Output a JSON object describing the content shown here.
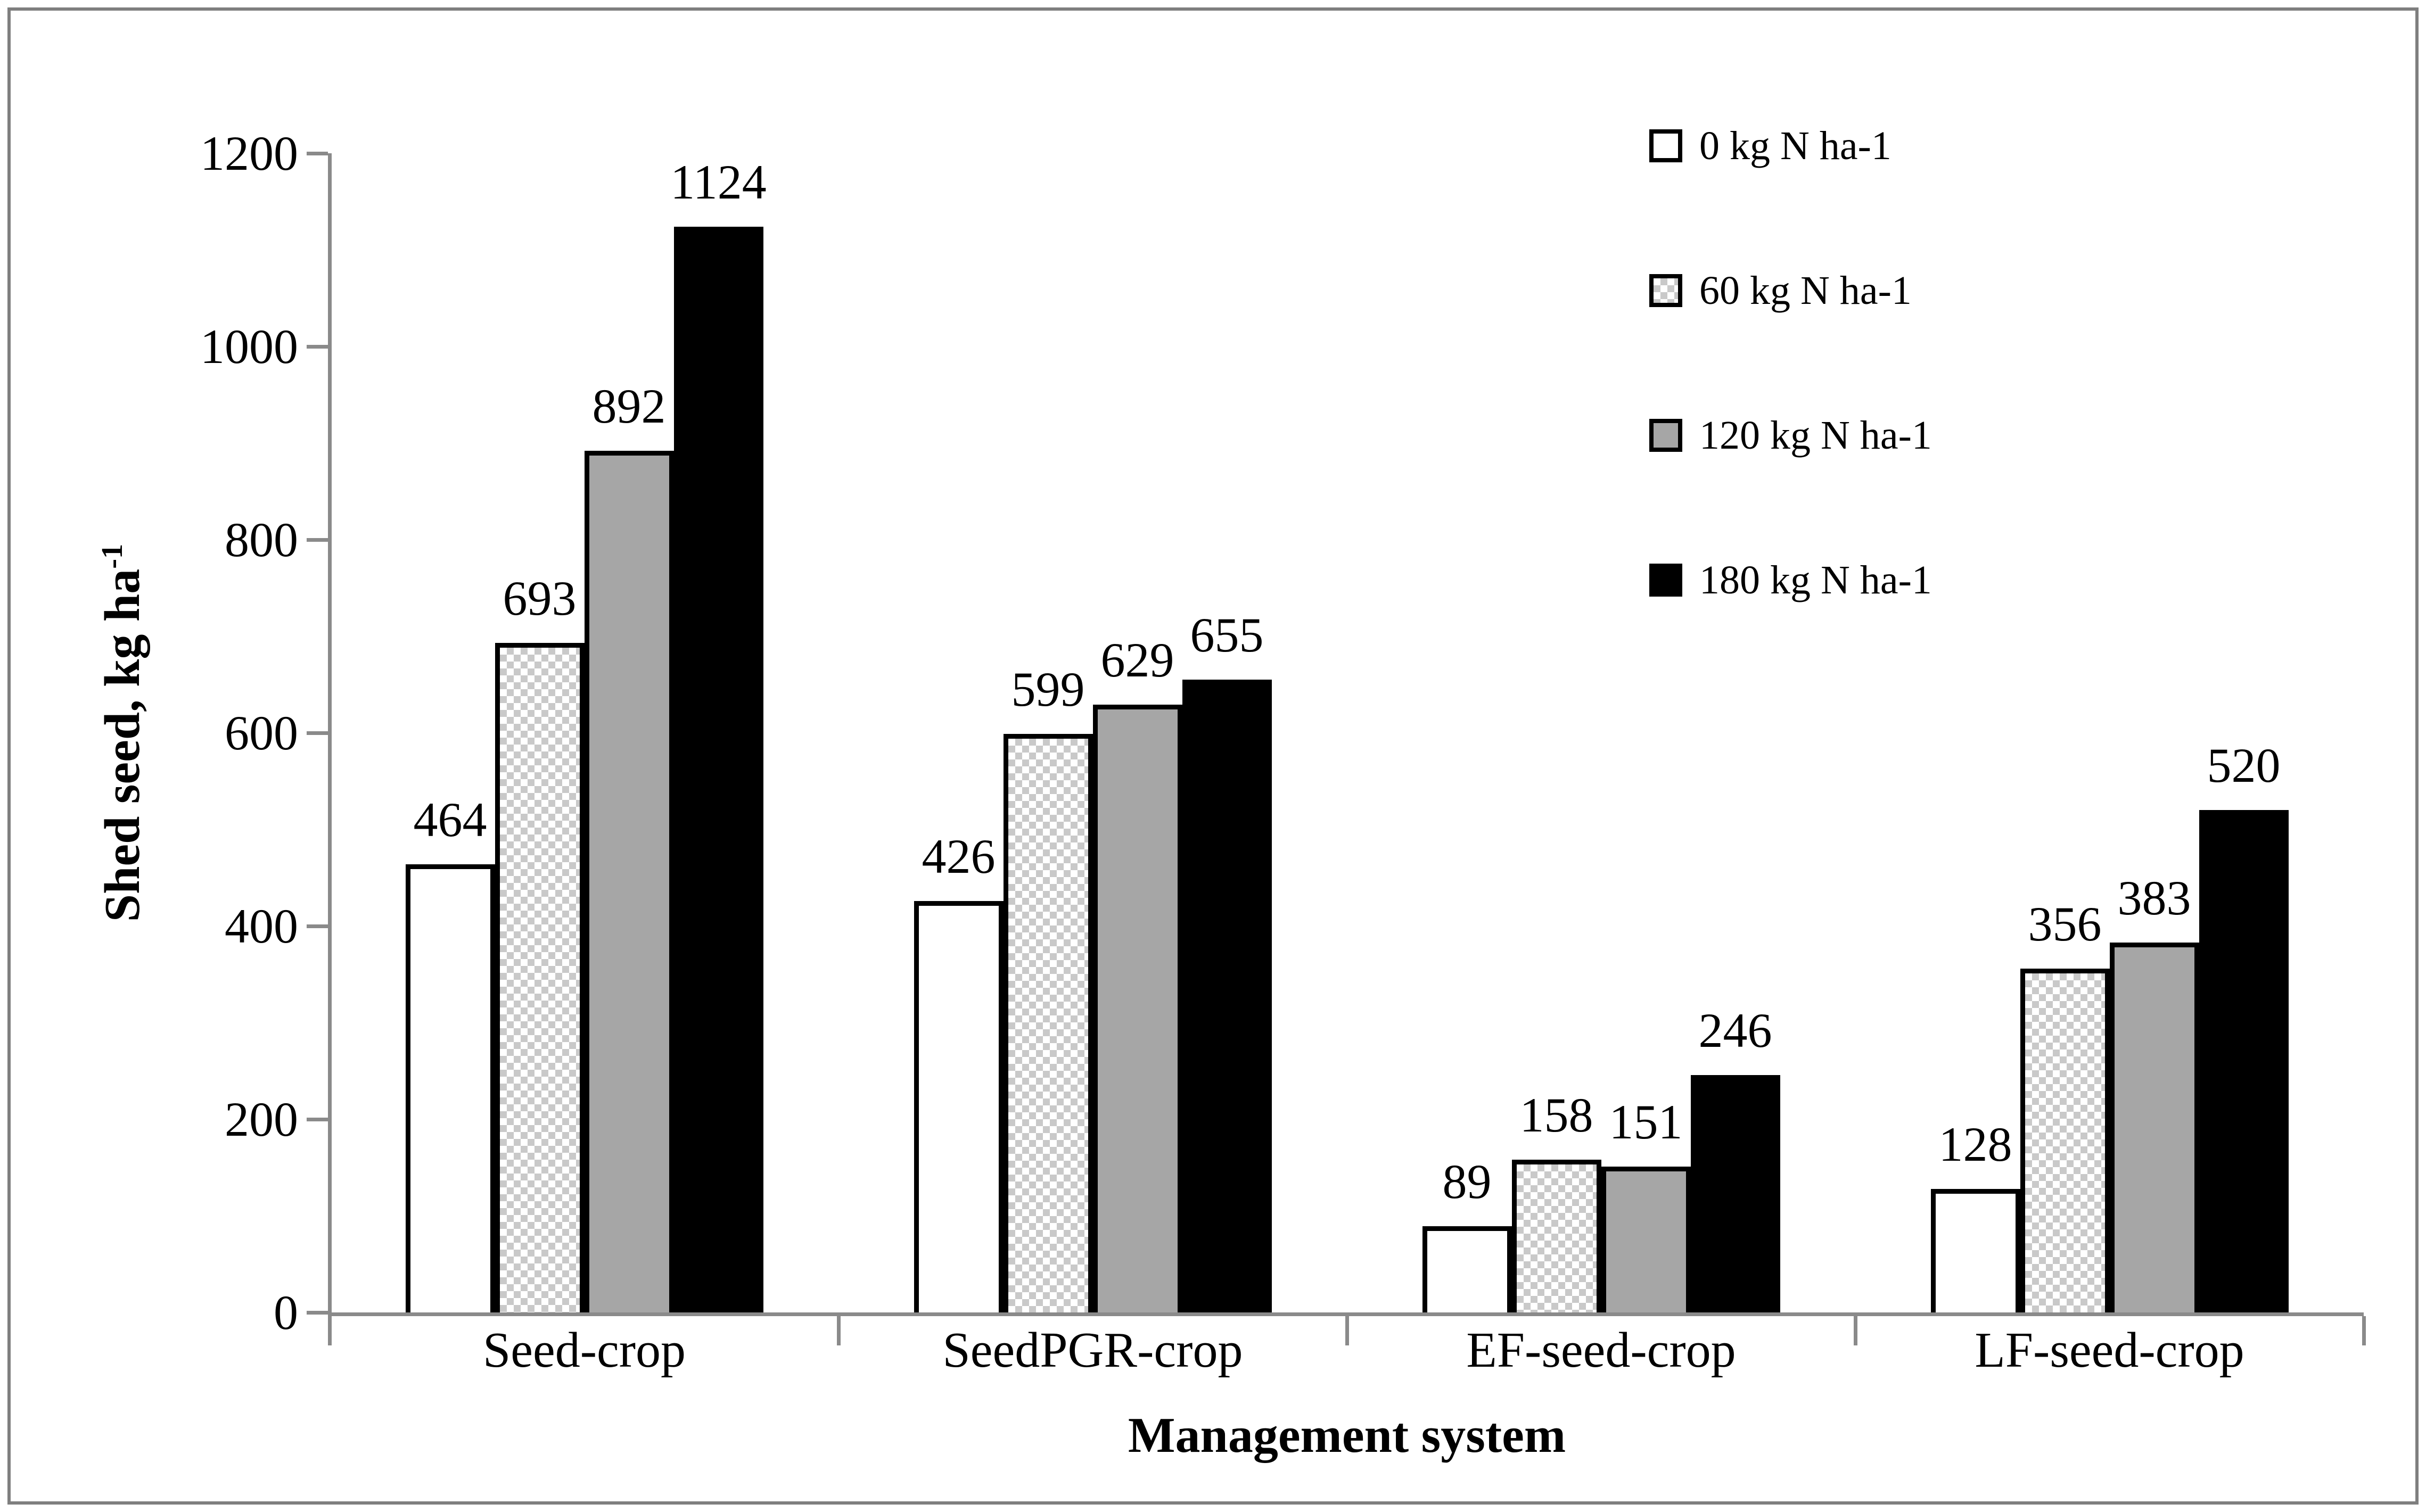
{
  "chart_data": {
    "type": "bar",
    "title": "",
    "categories": [
      "Seed-crop",
      "SeedPGR-crop",
      "EF-seed-crop",
      "LF-seed-crop"
    ],
    "series": [
      {
        "name": "0 kg N ha-1",
        "fill": "white",
        "color": "#ffffff",
        "values": [
          464,
          426,
          89,
          128
        ]
      },
      {
        "name": "60 kg N ha-1",
        "fill": "checker",
        "color": "#c9c9c9",
        "values": [
          693,
          599,
          158,
          356
        ]
      },
      {
        "name": "120 kg N ha-1",
        "fill": "solid",
        "color": "#a6a6a6",
        "values": [
          892,
          629,
          151,
          383
        ]
      },
      {
        "name": "180 kg N ha-1",
        "fill": "solid",
        "color": "#000000",
        "values": [
          1124,
          655,
          246,
          520
        ]
      }
    ],
    "xlabel": "Management system",
    "ylabel_base": "Shed seed, kg ha",
    "ylabel_superscript": "-1",
    "ylim": [
      0,
      1200
    ],
    "yticks": [
      0,
      200,
      400,
      600,
      800,
      1000,
      1200
    ],
    "grid": false,
    "legend_position": "top-right",
    "colors": {
      "axis": "#8a8a8a",
      "frame_border": "#7f7f7f",
      "bar_border": "#000000",
      "text": "#000000"
    }
  }
}
